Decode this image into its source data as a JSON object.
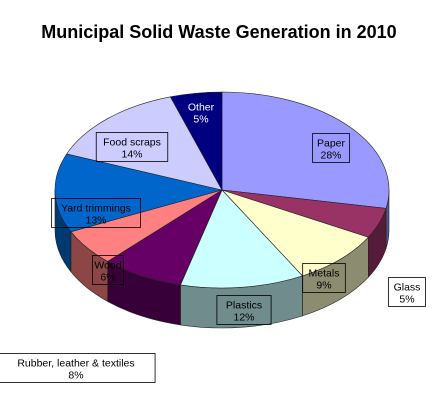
{
  "chart_data": {
    "type": "pie",
    "style": "3d",
    "title": "Municipal Solid Waste Generation in 2010",
    "unit": "%",
    "slices": [
      {
        "label": "Paper",
        "value": 28,
        "value_text": "28%",
        "color": "#9999ff"
      },
      {
        "label": "Glass",
        "value": 5,
        "value_text": "5%",
        "color": "#993366"
      },
      {
        "label": "Metals",
        "value": 9,
        "value_text": "9%",
        "color": "#ffffcc"
      },
      {
        "label": "Plastics",
        "value": 12,
        "value_text": "12%",
        "color": "#ccffff"
      },
      {
        "label": "Rubber, leather & textiles",
        "value": 8,
        "value_text": "8%",
        "color": "#660066"
      },
      {
        "label": "Wood",
        "value": 6,
        "value_text": "6%",
        "color": "#ff8080"
      },
      {
        "label": "Yard trimmings",
        "value": 13,
        "value_text": "13%",
        "color": "#0066cc"
      },
      {
        "label": "Food scraps",
        "value": 14,
        "value_text": "14%",
        "color": "#ccccff"
      },
      {
        "label": "Other",
        "value": 5,
        "value_text": "5%",
        "color": "#000080"
      }
    ]
  }
}
